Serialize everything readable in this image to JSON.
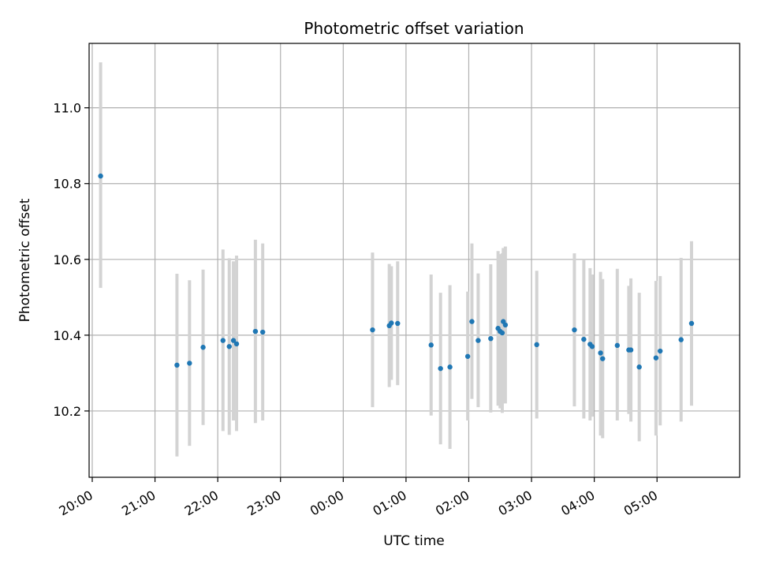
{
  "chart_data": {
    "type": "scatter",
    "title": "Photometric offset variation",
    "xlabel": "UTC time",
    "ylabel": "Photometric offset",
    "x_axis": {
      "kind": "time",
      "range": [
        "19:57",
        "06:19"
      ],
      "ticks": [
        "20:00",
        "21:00",
        "22:00",
        "23:00",
        "00:00",
        "01:00",
        "02:00",
        "03:00",
        "04:00",
        "05:00"
      ]
    },
    "y_axis": {
      "range": [
        10.025,
        11.17
      ],
      "ticks": [
        "10.2",
        "10.4",
        "10.6",
        "10.8",
        "11.0"
      ]
    },
    "grid": true,
    "marker_color": "#1f77b4",
    "errorbar_color": "#d3d3d3",
    "points": [
      {
        "t": "20:08",
        "y": 10.82,
        "lo": 10.525,
        "hi": 11.12
      },
      {
        "t": "21:21",
        "y": 10.321,
        "lo": 10.08,
        "hi": 10.562
      },
      {
        "t": "21:33",
        "y": 10.326,
        "lo": 10.108,
        "hi": 10.545
      },
      {
        "t": "21:46",
        "y": 10.368,
        "lo": 10.163,
        "hi": 10.573
      },
      {
        "t": "22:05",
        "y": 10.386,
        "lo": 10.147,
        "hi": 10.626
      },
      {
        "t": "22:11",
        "y": 10.37,
        "lo": 10.137,
        "hi": 10.603
      },
      {
        "t": "22:15",
        "y": 10.386,
        "lo": 10.175,
        "hi": 10.595
      },
      {
        "t": "22:18",
        "y": 10.377,
        "lo": 10.147,
        "hi": 10.61
      },
      {
        "t": "22:36",
        "y": 10.41,
        "lo": 10.168,
        "hi": 10.652
      },
      {
        "t": "22:43",
        "y": 10.408,
        "lo": 10.175,
        "hi": 10.642
      },
      {
        "t": "00:28",
        "y": 10.414,
        "lo": 10.21,
        "hi": 10.618
      },
      {
        "t": "00:44",
        "y": 10.425,
        "lo": 10.263,
        "hi": 10.588
      },
      {
        "t": "00:46",
        "y": 10.432,
        "lo": 10.282,
        "hi": 10.582
      },
      {
        "t": "00:52",
        "y": 10.431,
        "lo": 10.268,
        "hi": 10.595
      },
      {
        "t": "01:24",
        "y": 10.374,
        "lo": 10.188,
        "hi": 10.56
      },
      {
        "t": "01:33",
        "y": 10.312,
        "lo": 10.112,
        "hi": 10.512
      },
      {
        "t": "01:42",
        "y": 10.316,
        "lo": 10.1,
        "hi": 10.532
      },
      {
        "t": "01:59",
        "y": 10.344,
        "lo": 10.175,
        "hi": 10.515
      },
      {
        "t": "02:03",
        "y": 10.436,
        "lo": 10.232,
        "hi": 10.642
      },
      {
        "t": "02:09",
        "y": 10.386,
        "lo": 10.21,
        "hi": 10.563
      },
      {
        "t": "02:21",
        "y": 10.391,
        "lo": 10.196,
        "hi": 10.587
      },
      {
        "t": "02:28",
        "y": 10.418,
        "lo": 10.214,
        "hi": 10.622
      },
      {
        "t": "02:30",
        "y": 10.41,
        "lo": 10.207,
        "hi": 10.614
      },
      {
        "t": "02:32",
        "y": 10.406,
        "lo": 10.195,
        "hi": 10.616
      },
      {
        "t": "02:33",
        "y": 10.436,
        "lo": 10.22,
        "hi": 10.63
      },
      {
        "t": "02:35",
        "y": 10.427,
        "lo": 10.22,
        "hi": 10.634
      },
      {
        "t": "03:05",
        "y": 10.375,
        "lo": 10.18,
        "hi": 10.57
      },
      {
        "t": "03:41",
        "y": 10.414,
        "lo": 10.212,
        "hi": 10.616
      },
      {
        "t": "03:50",
        "y": 10.389,
        "lo": 10.18,
        "hi": 10.6
      },
      {
        "t": "03:56",
        "y": 10.376,
        "lo": 10.175,
        "hi": 10.577
      },
      {
        "t": "03:58",
        "y": 10.37,
        "lo": 10.185,
        "hi": 10.56
      },
      {
        "t": "04:06",
        "y": 10.353,
        "lo": 10.135,
        "hi": 10.567
      },
      {
        "t": "04:08",
        "y": 10.338,
        "lo": 10.128,
        "hi": 10.548
      },
      {
        "t": "04:22",
        "y": 10.373,
        "lo": 10.175,
        "hi": 10.575
      },
      {
        "t": "04:33",
        "y": 10.361,
        "lo": 10.192,
        "hi": 10.53
      },
      {
        "t": "04:35",
        "y": 10.361,
        "lo": 10.172,
        "hi": 10.55
      },
      {
        "t": "04:43",
        "y": 10.316,
        "lo": 10.12,
        "hi": 10.512
      },
      {
        "t": "04:59",
        "y": 10.34,
        "lo": 10.135,
        "hi": 10.543
      },
      {
        "t": "05:03",
        "y": 10.358,
        "lo": 10.162,
        "hi": 10.556
      },
      {
        "t": "05:23",
        "y": 10.388,
        "lo": 10.172,
        "hi": 10.604
      },
      {
        "t": "05:33",
        "y": 10.431,
        "lo": 10.214,
        "hi": 10.648
      }
    ]
  }
}
